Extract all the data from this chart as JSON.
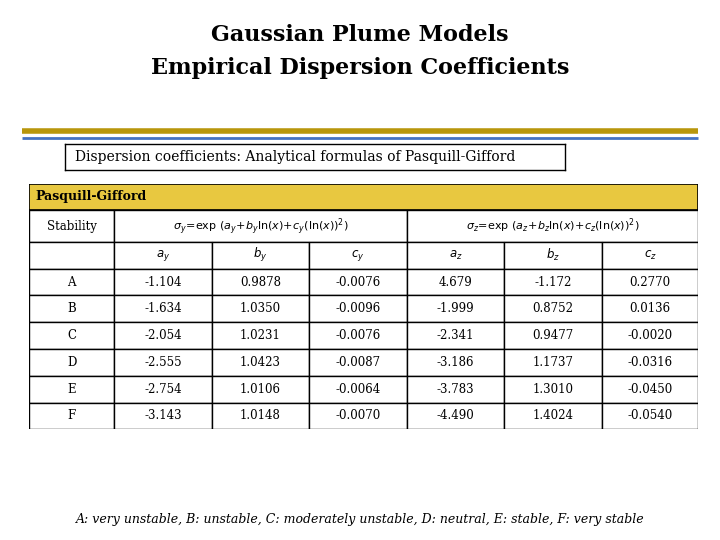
{
  "title_line1": "Gaussian Plume Models",
  "title_line2": "Empirical Dispersion Coefficients",
  "subtitle_box": "Dispersion coefficients: Analytical formulas of Pasquill-Gifford",
  "table_header": "Pasquill-Gifford",
  "stability_label": "Stability",
  "stabilities": [
    "A",
    "B",
    "C",
    "D",
    "E",
    "F"
  ],
  "data": [
    [
      "-1.104",
      "0.9878",
      "-0.0076",
      "4.679",
      "-1.172",
      "0.2770"
    ],
    [
      "-1.634",
      "1.0350",
      "-0.0096",
      "-1.999",
      "0.8752",
      "0.0136"
    ],
    [
      "-2.054",
      "1.0231",
      "-0.0076",
      "-2.341",
      "0.9477",
      "-0.0020"
    ],
    [
      "-2.555",
      "1.0423",
      "-0.0087",
      "-3.186",
      "1.1737",
      "-0.0316"
    ],
    [
      "-2.754",
      "1.0106",
      "-0.0064",
      "-3.783",
      "1.3010",
      "-0.0450"
    ],
    [
      "-3.143",
      "1.0148",
      "-0.0070",
      "-4.490",
      "1.4024",
      "-0.0540"
    ]
  ],
  "footnote": "A: very unstable, B: unstable, C: moderately unstable, D: neutral, E: stable, F: very stable",
  "bg_color": "#ffffff",
  "gold_line_color": "#b8960c",
  "blue_line_color": "#4472c4",
  "table_header_bg": "#e8c840",
  "title_fontsize": 16,
  "subtitle_fontsize": 10,
  "table_fontsize": 8.5,
  "footnote_fontsize": 9
}
